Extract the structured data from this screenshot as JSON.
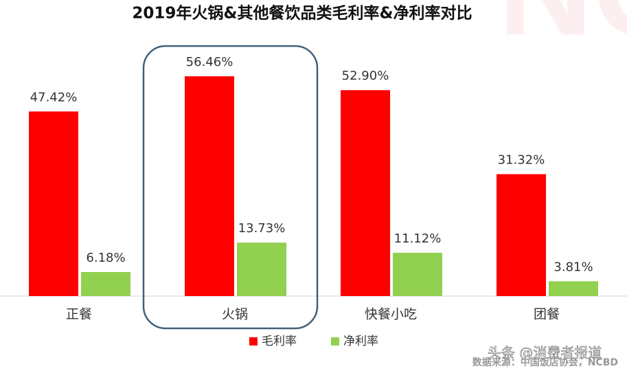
{
  "chart_data": {
    "type": "bar",
    "title": "2019年火锅&其他餐饮品类毛利率&净利率对比",
    "categories": [
      "正餐",
      "火锅",
      "快餐小吃",
      "团餐"
    ],
    "series": [
      {
        "name": "毛利率",
        "color": "#ff0000",
        "values": [
          47.42,
          56.46,
          52.9,
          31.32
        ],
        "value_labels": [
          "47.42%",
          "56.46%",
          "52.90%",
          "31.32%"
        ]
      },
      {
        "name": "净利率",
        "color": "#92d050",
        "values": [
          6.18,
          13.73,
          11.12,
          3.81
        ],
        "value_labels": [
          "6.18%",
          "13.73%",
          "11.12%",
          "3.81%"
        ]
      }
    ],
    "ylim": [
      0,
      60
    ],
    "legend": "bottom",
    "watermark": "NCBD",
    "source": "数据来源：中国饭店协会，NCBD",
    "annotation": "头条 @消费者报道"
  }
}
